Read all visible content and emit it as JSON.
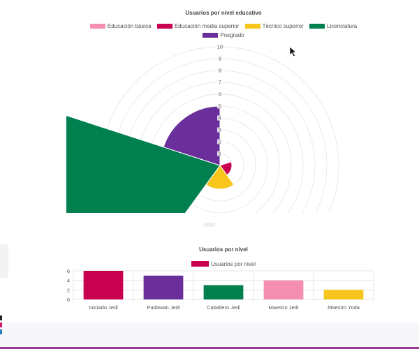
{
  "charts": {
    "polar": {
      "title": "Usuarios por nivel educativo",
      "legend_rows": [
        [
          {
            "label": "Educación básica",
            "color": "#f48fb1"
          },
          {
            "label": "Educación media superior",
            "color": "#c8004f"
          },
          {
            "label": "Técnico superior",
            "color": "#f8c51c"
          },
          {
            "label": "Licenciatura",
            "color": "#00804f"
          }
        ],
        [
          {
            "label": "Posgrado",
            "color": "#6a2f9a"
          }
        ]
      ]
    },
    "bar": {
      "title": "Usuarios por nivel",
      "legend": {
        "label": "Usuarios por nivel",
        "color": "#c8004f"
      }
    }
  },
  "chart_data": [
    {
      "type": "polar-area",
      "title": "Usuarios por nivel educativo",
      "categories": [
        "Educación básica",
        "Educación media superior",
        "Técnico superior",
        "Licenciatura",
        "Posgrado"
      ],
      "values": [
        0,
        1,
        2,
        15,
        5
      ],
      "colors": [
        "#f48fb1",
        "#c8004f",
        "#f8c51c",
        "#00804f",
        "#6a2f9a"
      ],
      "r_ticks": [
        1,
        2,
        3,
        4,
        5,
        6,
        7,
        8,
        9,
        10
      ],
      "rlim": [
        0,
        10
      ],
      "legend": "top",
      "grid": true
    },
    {
      "type": "bar",
      "title": "Usuarios por nivel",
      "categories": [
        "Iniciado Jedi",
        "Padawan Jedi",
        "Caballero Jedi",
        "Maestro Jedi",
        "Maestro Yoda"
      ],
      "series": [
        {
          "name": "Usuarios por nivel",
          "values": [
            6,
            5,
            3,
            4,
            2
          ]
        }
      ],
      "bar_colors": [
        "#c8004f",
        "#6a2f9a",
        "#00804f",
        "#f48fb1",
        "#f8c51c"
      ],
      "y_ticks": [
        0,
        2,
        4,
        6
      ],
      "ylim": [
        0,
        6
      ],
      "legend": "top",
      "grid": true
    }
  ]
}
